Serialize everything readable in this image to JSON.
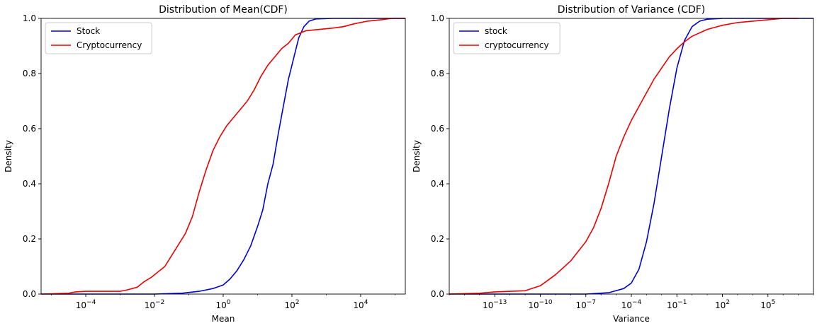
{
  "chart_data": [
    {
      "type": "line",
      "title": "Distribution of Mean(CDF)",
      "xlabel": "Mean",
      "ylabel": "Density",
      "xscale": "log",
      "xlim": [
        5e-06,
        200000
      ],
      "ylim": [
        0,
        1.0
      ],
      "x_ticks": [
        {
          "exp": -4,
          "base": "10",
          "sup": "−4"
        },
        {
          "exp": -2,
          "base": "10",
          "sup": "−2"
        },
        {
          "exp": 0,
          "base": "10",
          "sup": "0"
        },
        {
          "exp": 2,
          "base": "10",
          "sup": "2"
        },
        {
          "exp": 4,
          "base": "10",
          "sup": "4"
        }
      ],
      "y_ticks": [
        "0.0",
        "0.2",
        "0.4",
        "0.6",
        "0.8",
        "1.0"
      ],
      "y_tick_values": [
        0,
        0.2,
        0.4,
        0.6,
        0.8,
        1.0
      ],
      "legend_position": "top-left",
      "grid": false,
      "series": [
        {
          "name": "Stock",
          "color": "#0000dd",
          "points": [
            [
              -5.3,
              0
            ],
            [
              -2,
              0
            ],
            [
              -1.2,
              0.003
            ],
            [
              -0.7,
              0.01
            ],
            [
              -0.3,
              0.02
            ],
            [
              0,
              0.033
            ],
            [
              0.2,
              0.055
            ],
            [
              0.4,
              0.085
            ],
            [
              0.6,
              0.125
            ],
            [
              0.8,
              0.175
            ],
            [
              1.0,
              0.245
            ],
            [
              1.15,
              0.305
            ],
            [
              1.3,
              0.4
            ],
            [
              1.45,
              0.47
            ],
            [
              1.6,
              0.58
            ],
            [
              1.75,
              0.68
            ],
            [
              1.9,
              0.78
            ],
            [
              2.0,
              0.83
            ],
            [
              2.1,
              0.88
            ],
            [
              2.2,
              0.93
            ],
            [
              2.35,
              0.97
            ],
            [
              2.5,
              0.99
            ],
            [
              2.7,
              0.998
            ],
            [
              3.2,
              1.0
            ],
            [
              5.3,
              1.0
            ]
          ]
        },
        {
          "name": "Cryptocurrency",
          "color": "#ee0000",
          "points": [
            [
              -5.3,
              0
            ],
            [
              -4.5,
              0.003
            ],
            [
              -4.3,
              0.008
            ],
            [
              -4,
              0.01
            ],
            [
              -3.5,
              0.01
            ],
            [
              -3,
              0.01
            ],
            [
              -2.8,
              0.015
            ],
            [
              -2.5,
              0.025
            ],
            [
              -2.3,
              0.045
            ],
            [
              -2.1,
              0.06
            ],
            [
              -1.9,
              0.08
            ],
            [
              -1.7,
              0.1
            ],
            [
              -1.5,
              0.14
            ],
            [
              -1.3,
              0.18
            ],
            [
              -1.1,
              0.22
            ],
            [
              -0.9,
              0.28
            ],
            [
              -0.7,
              0.37
            ],
            [
              -0.5,
              0.45
            ],
            [
              -0.3,
              0.52
            ],
            [
              -0.1,
              0.57
            ],
            [
              0.1,
              0.61
            ],
            [
              0.3,
              0.64
            ],
            [
              0.5,
              0.67
            ],
            [
              0.7,
              0.7
            ],
            [
              0.9,
              0.74
            ],
            [
              1.1,
              0.79
            ],
            [
              1.3,
              0.83
            ],
            [
              1.5,
              0.86
            ],
            [
              1.7,
              0.89
            ],
            [
              1.9,
              0.91
            ],
            [
              2.1,
              0.94
            ],
            [
              2.4,
              0.955
            ],
            [
              2.8,
              0.96
            ],
            [
              3.2,
              0.965
            ],
            [
              3.5,
              0.97
            ],
            [
              3.8,
              0.98
            ],
            [
              4.2,
              0.99
            ],
            [
              4.6,
              0.995
            ],
            [
              4.9,
              1.0
            ],
            [
              5.3,
              1.0
            ]
          ]
        }
      ]
    },
    {
      "type": "line",
      "title": "Distribution of Variance (CDF)",
      "xlabel": "Variance",
      "ylabel": "Density",
      "xscale": "log",
      "xlim": [
        1e-16,
        100000000.0
      ],
      "ylim": [
        0,
        1.0
      ],
      "x_ticks": [
        {
          "exp": -13,
          "base": "10",
          "sup": "−13"
        },
        {
          "exp": -10,
          "base": "10",
          "sup": "−10"
        },
        {
          "exp": -7,
          "base": "10",
          "sup": "−7"
        },
        {
          "exp": -4,
          "base": "10",
          "sup": "−4"
        },
        {
          "exp": -1,
          "base": "10",
          "sup": "−1"
        },
        {
          "exp": 2,
          "base": "10",
          "sup": "2"
        },
        {
          "exp": 5,
          "base": "10",
          "sup": "5"
        }
      ],
      "y_ticks": [
        "0.0",
        "0.2",
        "0.4",
        "0.6",
        "0.8",
        "1.0"
      ],
      "y_tick_values": [
        0,
        0.2,
        0.4,
        0.6,
        0.8,
        1.0
      ],
      "legend_position": "top-left",
      "grid": false,
      "series": [
        {
          "name": "stock",
          "color": "#0000dd",
          "points": [
            [
              -16,
              0
            ],
            [
              -7,
              0
            ],
            [
              -5.5,
              0.005
            ],
            [
              -4.5,
              0.02
            ],
            [
              -4,
              0.04
            ],
            [
              -3.5,
              0.09
            ],
            [
              -3,
              0.19
            ],
            [
              -2.5,
              0.33
            ],
            [
              -2,
              0.5
            ],
            [
              -1.5,
              0.67
            ],
            [
              -1,
              0.82
            ],
            [
              -0.5,
              0.92
            ],
            [
              0,
              0.97
            ],
            [
              0.5,
              0.99
            ],
            [
              1,
              0.997
            ],
            [
              2,
              1.0
            ],
            [
              8,
              1.0
            ]
          ]
        },
        {
          "name": "cryptocurrency",
          "color": "#ee0000",
          "points": [
            [
              -16,
              0
            ],
            [
              -14,
              0.003
            ],
            [
              -13,
              0.008
            ],
            [
              -12,
              0.01
            ],
            [
              -11,
              0.012
            ],
            [
              -10,
              0.03
            ],
            [
              -9,
              0.07
            ],
            [
              -8,
              0.12
            ],
            [
              -7,
              0.19
            ],
            [
              -6.5,
              0.24
            ],
            [
              -6,
              0.31
            ],
            [
              -5.5,
              0.4
            ],
            [
              -5,
              0.5
            ],
            [
              -4.5,
              0.57
            ],
            [
              -4,
              0.63
            ],
            [
              -3.5,
              0.68
            ],
            [
              -3,
              0.73
            ],
            [
              -2.5,
              0.78
            ],
            [
              -2,
              0.82
            ],
            [
              -1.5,
              0.86
            ],
            [
              -1,
              0.89
            ],
            [
              -0.5,
              0.915
            ],
            [
              0,
              0.935
            ],
            [
              1,
              0.96
            ],
            [
              2,
              0.975
            ],
            [
              3,
              0.985
            ],
            [
              4,
              0.99
            ],
            [
              5,
              0.995
            ],
            [
              6,
              1.0
            ],
            [
              7,
              1.0
            ]
          ]
        }
      ]
    }
  ]
}
